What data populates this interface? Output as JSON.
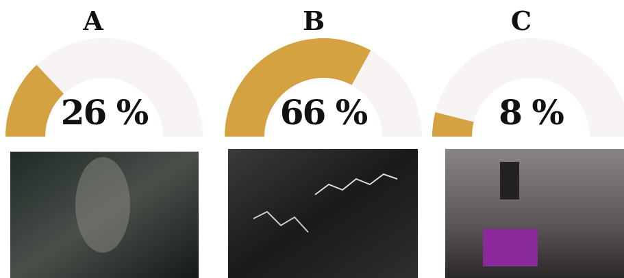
{
  "chart_data": {
    "type": "gauge",
    "categories": [
      "A",
      "B",
      "C"
    ],
    "values": [
      26,
      66,
      8
    ],
    "value_labels": [
      "26 %",
      "66 %",
      "8 %"
    ],
    "color": "#d4a241",
    "track_color": "#f8f4f3",
    "ylim": [
      0,
      100
    ]
  }
}
